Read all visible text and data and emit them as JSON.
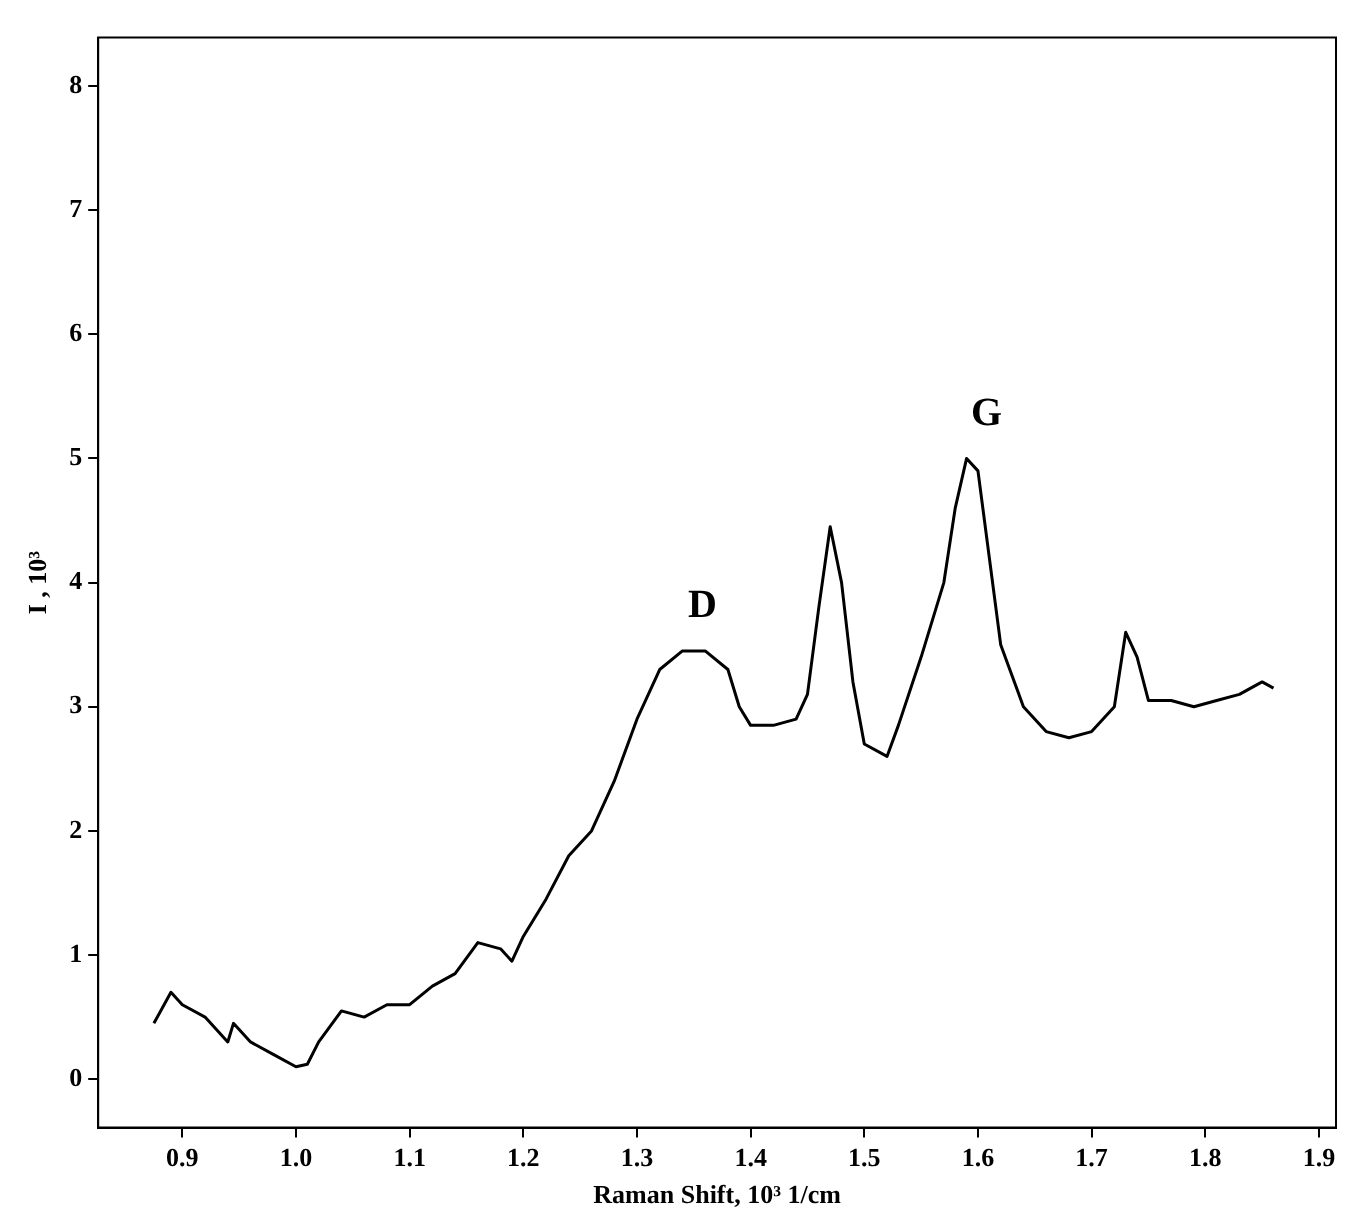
{
  "chart_data": {
    "type": "line",
    "xlabel": "Raman Shift, 10³ 1/cm",
    "ylabel": "I , 10³",
    "x": [
      0.875,
      0.89,
      0.9,
      0.92,
      0.94,
      0.945,
      0.96,
      0.98,
      1.0,
      1.01,
      1.02,
      1.04,
      1.06,
      1.08,
      1.1,
      1.12,
      1.14,
      1.16,
      1.18,
      1.19,
      1.2,
      1.22,
      1.24,
      1.26,
      1.28,
      1.3,
      1.32,
      1.34,
      1.36,
      1.38,
      1.39,
      1.4,
      1.42,
      1.44,
      1.45,
      1.46,
      1.47,
      1.48,
      1.49,
      1.5,
      1.52,
      1.53,
      1.55,
      1.57,
      1.58,
      1.59,
      1.6,
      1.61,
      1.62,
      1.64,
      1.66,
      1.68,
      1.7,
      1.72,
      1.73,
      1.74,
      1.75,
      1.77,
      1.79,
      1.81,
      1.83,
      1.85,
      1.86
    ],
    "series": [
      {
        "color": "#000000",
        "values": [
          0.45,
          0.7,
          0.6,
          0.5,
          0.3,
          0.45,
          0.3,
          0.2,
          0.1,
          0.12,
          0.3,
          0.55,
          0.5,
          0.6,
          0.6,
          0.75,
          0.85,
          1.1,
          1.05,
          0.95,
          1.15,
          1.45,
          1.8,
          2.0,
          2.4,
          2.9,
          3.3,
          3.45,
          3.45,
          3.3,
          3.0,
          2.85,
          2.85,
          2.9,
          3.1,
          3.8,
          4.45,
          4.0,
          3.2,
          2.7,
          2.6,
          2.85,
          3.4,
          4.0,
          4.6,
          5.0,
          4.9,
          4.2,
          3.5,
          3.0,
          2.8,
          2.75,
          2.8,
          3.0,
          3.6,
          3.4,
          3.05,
          3.05,
          3.0,
          3.05,
          3.1,
          3.2,
          3.15
        ]
      }
    ],
    "xlim": [
      0.826,
      1.915
    ],
    "ylim": [
      -0.39,
      8.39
    ],
    "xticks": [
      {
        "value": 0.9,
        "label": "0.9"
      },
      {
        "value": 1.0,
        "label": "1.0"
      },
      {
        "value": 1.1,
        "label": "1.1"
      },
      {
        "value": 1.2,
        "label": "1.2"
      },
      {
        "value": 1.3,
        "label": "1.3"
      },
      {
        "value": 1.4,
        "label": "1.4"
      },
      {
        "value": 1.5,
        "label": "1.5"
      },
      {
        "value": 1.6,
        "label": "1.6"
      },
      {
        "value": 1.7,
        "label": "1.7"
      },
      {
        "value": 1.8,
        "label": "1.8"
      },
      {
        "value": 1.9,
        "label": "1.9"
      }
    ],
    "yticks": [
      0,
      1,
      2,
      3,
      4,
      5,
      6,
      7,
      8
    ],
    "annotations": [
      {
        "text": "D",
        "x": 1.34,
        "y": 3.45
      },
      {
        "text": "G",
        "x": 1.59,
        "y": 5.0
      }
    ],
    "grid": false,
    "legend": false,
    "marker": "none",
    "line_style": "solid"
  }
}
